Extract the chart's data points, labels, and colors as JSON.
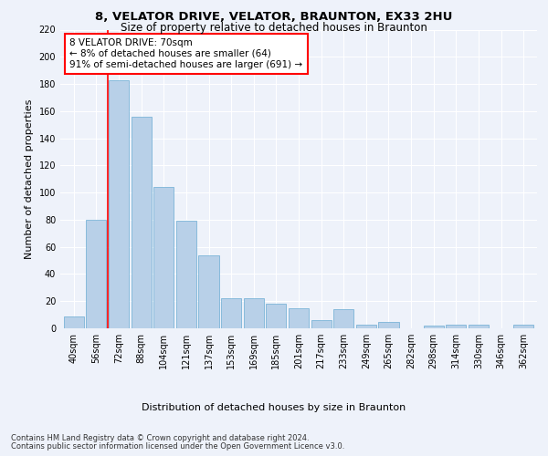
{
  "title": "8, VELATOR DRIVE, VELATOR, BRAUNTON, EX33 2HU",
  "subtitle": "Size of property relative to detached houses in Braunton",
  "xlabel": "Distribution of detached houses by size in Braunton",
  "ylabel": "Number of detached properties",
  "categories": [
    "40sqm",
    "56sqm",
    "72sqm",
    "88sqm",
    "104sqm",
    "121sqm",
    "137sqm",
    "153sqm",
    "169sqm",
    "185sqm",
    "201sqm",
    "217sqm",
    "233sqm",
    "249sqm",
    "265sqm",
    "282sqm",
    "298sqm",
    "314sqm",
    "330sqm",
    "346sqm",
    "362sqm"
  ],
  "values": [
    9,
    80,
    183,
    156,
    104,
    79,
    54,
    22,
    22,
    18,
    15,
    6,
    14,
    3,
    5,
    0,
    2,
    3,
    3,
    0,
    3
  ],
  "bar_color": "#b8d0e8",
  "bar_edge_color": "#6aabd2",
  "annotation_text": "8 VELATOR DRIVE: 70sqm\n← 8% of detached houses are smaller (64)\n91% of semi-detached houses are larger (691) →",
  "annotation_box_color": "white",
  "annotation_box_edgecolor": "red",
  "ylim": [
    0,
    220
  ],
  "yticks": [
    0,
    20,
    40,
    60,
    80,
    100,
    120,
    140,
    160,
    180,
    200,
    220
  ],
  "footer1": "Contains HM Land Registry data © Crown copyright and database right 2024.",
  "footer2": "Contains public sector information licensed under the Open Government Licence v3.0.",
  "background_color": "#eef2fa",
  "grid_color": "white",
  "title_fontsize": 9.5,
  "subtitle_fontsize": 8.5,
  "xlabel_fontsize": 8,
  "ylabel_fontsize": 8,
  "tick_fontsize": 7,
  "annotation_fontsize": 7.5,
  "footer_fontsize": 6
}
